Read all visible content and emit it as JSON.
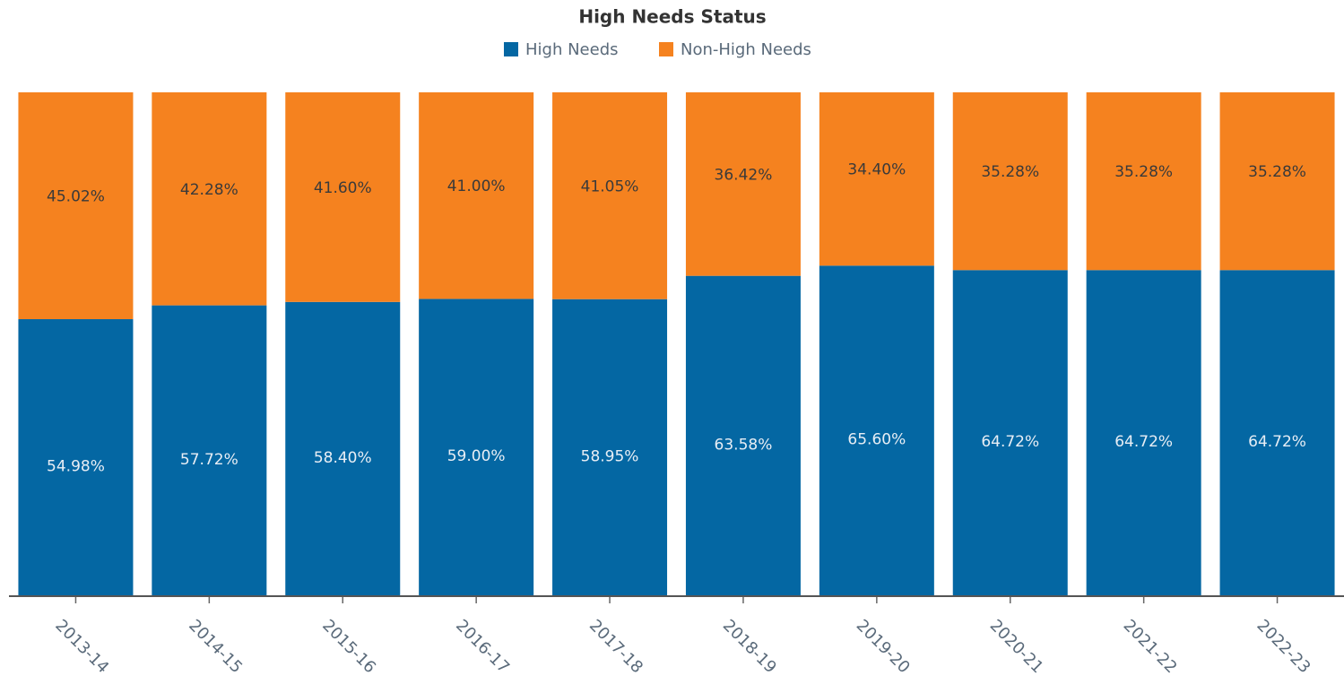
{
  "chart_data": {
    "type": "stacked-bar",
    "title": "High Needs Status",
    "categories": [
      "2013-14",
      "2014-15",
      "2015-16",
      "2016-17",
      "2017-18",
      "2018-19",
      "2019-20",
      "2020-21",
      "2021-22",
      "2022-23"
    ],
    "series": [
      {
        "name": "High Needs",
        "color": "#0467a3",
        "values": [
          54.98,
          57.72,
          58.4,
          59,
          58.95,
          63.58,
          65.6,
          64.72,
          64.72,
          64.72
        ],
        "value_labels": [
          "54.98%",
          "57.72%",
          "58.40%",
          "59.00%",
          "58.95%",
          "63.58%",
          "65.60%",
          "64.72%",
          "64.72%",
          "64.72%"
        ]
      },
      {
        "name": "Non-High Needs",
        "color": "#f5821f",
        "values": [
          45.02,
          42.28,
          41.6,
          41,
          41.05,
          36.42,
          34.4,
          35.28,
          35.28,
          35.28
        ],
        "value_labels": [
          "45.02%",
          "42.28%",
          "41.60%",
          "41.00%",
          "41.05%",
          "36.42%",
          "34.40%",
          "35.28%",
          "35.28%",
          "35.28%"
        ]
      }
    ]
  }
}
